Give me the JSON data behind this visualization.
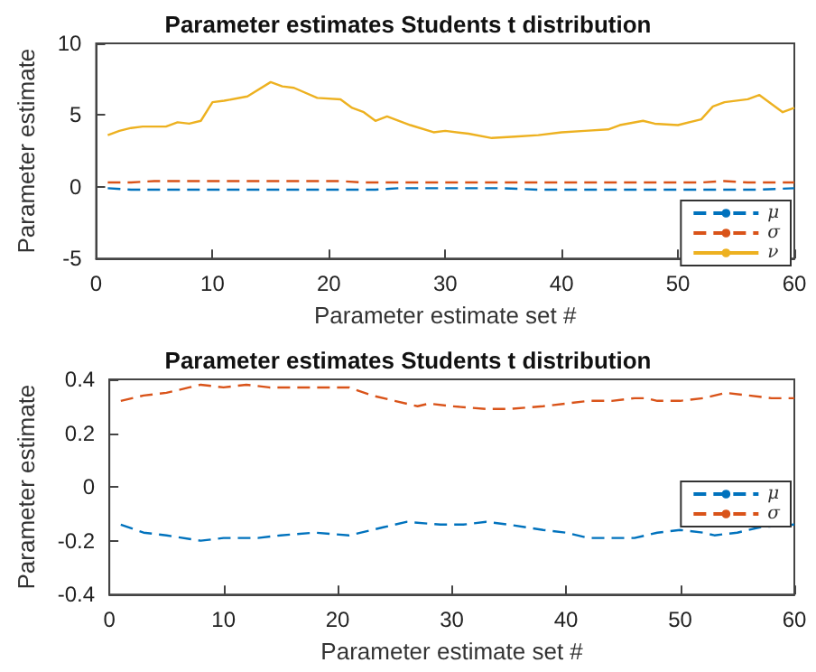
{
  "chart_data": [
    {
      "type": "line",
      "title": "Parameter estimates Students t distribution",
      "xlabel": "Parameter estimate set #",
      "ylabel": "Parameter estimate",
      "xlim": [
        0,
        60
      ],
      "xticks": [
        0,
        10,
        20,
        30,
        40,
        50,
        60
      ],
      "ylim": [
        -5,
        10
      ],
      "yticks": [
        -5,
        0,
        5,
        10
      ],
      "grid": false,
      "legend": "bottom right",
      "marker": "none",
      "series": [
        {
          "name": "μ",
          "color": "#0072bd",
          "line_style": "dashed",
          "x": [
            1,
            3,
            5,
            8,
            10,
            13,
            15,
            18,
            21,
            24,
            26,
            29,
            31,
            33,
            35,
            38,
            40,
            42,
            44,
            46,
            48,
            50,
            52,
            53,
            55,
            57,
            60
          ],
          "values": [
            -0.1,
            -0.2,
            -0.2,
            -0.2,
            -0.2,
            -0.2,
            -0.2,
            -0.2,
            -0.2,
            -0.2,
            -0.1,
            -0.1,
            -0.1,
            -0.1,
            -0.1,
            -0.2,
            -0.2,
            -0.2,
            -0.2,
            -0.2,
            -0.2,
            -0.2,
            -0.2,
            -0.2,
            -0.2,
            -0.2,
            -0.1
          ]
        },
        {
          "name": "σ",
          "color": "#d95319",
          "line_style": "dashed",
          "x": [
            1,
            3,
            5,
            7,
            8,
            10,
            12,
            14,
            17,
            20,
            21,
            23,
            25,
            27,
            28,
            30,
            33,
            35,
            38,
            40,
            42,
            44,
            46,
            47,
            48,
            50,
            52,
            54,
            56,
            58,
            60
          ],
          "values": [
            0.3,
            0.3,
            0.4,
            0.4,
            0.4,
            0.4,
            0.4,
            0.4,
            0.4,
            0.4,
            0.4,
            0.3,
            0.3,
            0.3,
            0.3,
            0.3,
            0.3,
            0.3,
            0.3,
            0.3,
            0.3,
            0.3,
            0.3,
            0.3,
            0.3,
            0.3,
            0.3,
            0.4,
            0.3,
            0.3,
            0.3
          ]
        },
        {
          "name": "ν",
          "color": "#edb120",
          "line_style": "solid",
          "x": [
            1,
            2,
            3,
            4,
            6,
            7,
            8,
            9,
            10,
            11,
            13,
            15,
            16,
            17,
            19,
            21,
            22,
            23,
            24,
            25,
            27,
            29,
            30,
            32,
            34,
            36,
            38,
            40,
            42,
            44,
            45,
            47,
            48,
            50,
            52,
            53,
            54,
            56,
            57,
            58,
            59,
            60
          ],
          "values": [
            3.6,
            3.9,
            4.1,
            4.2,
            4.2,
            4.5,
            4.4,
            4.6,
            5.9,
            6.0,
            6.3,
            7.3,
            7.0,
            6.9,
            6.2,
            6.1,
            5.5,
            5.2,
            4.6,
            4.9,
            4.3,
            3.8,
            3.9,
            3.7,
            3.4,
            3.5,
            3.6,
            3.8,
            3.9,
            4.0,
            4.3,
            4.6,
            4.4,
            4.3,
            4.7,
            5.6,
            5.9,
            6.1,
            6.4,
            5.8,
            5.2,
            5.5
          ]
        }
      ]
    },
    {
      "type": "line",
      "title": "Parameter estimates Students t distribution",
      "xlabel": "Parameter estimate set #",
      "ylabel": "Parameter estimate",
      "xlim": [
        0,
        60
      ],
      "xticks": [
        0,
        10,
        20,
        30,
        40,
        50,
        60
      ],
      "ylim": [
        -0.4,
        0.4
      ],
      "yticks": [
        -0.4,
        -0.2,
        0,
        0.2,
        0.4
      ],
      "grid": false,
      "legend": "right",
      "marker": "none",
      "series": [
        {
          "name": "μ",
          "color": "#0072bd",
          "line_style": "dashed",
          "x": [
            1,
            3,
            5,
            8,
            10,
            13,
            15,
            18,
            21,
            24,
            26,
            29,
            31,
            33,
            35,
            38,
            40,
            42,
            44,
            46,
            48,
            50,
            52,
            53,
            55,
            57,
            60
          ],
          "values": [
            -0.14,
            -0.17,
            -0.18,
            -0.2,
            -0.19,
            -0.19,
            -0.18,
            -0.17,
            -0.18,
            -0.15,
            -0.13,
            -0.14,
            -0.14,
            -0.13,
            -0.14,
            -0.16,
            -0.17,
            -0.19,
            -0.19,
            -0.19,
            -0.17,
            -0.16,
            -0.17,
            -0.18,
            -0.17,
            -0.15,
            -0.14
          ]
        },
        {
          "name": "σ",
          "color": "#d95319",
          "line_style": "dashed",
          "x": [
            1,
            3,
            5,
            7,
            8,
            10,
            12,
            14,
            17,
            20,
            21,
            23,
            25,
            27,
            28,
            30,
            33,
            35,
            38,
            40,
            42,
            44,
            46,
            47,
            48,
            50,
            52,
            54,
            56,
            58,
            60
          ],
          "values": [
            0.32,
            0.34,
            0.35,
            0.37,
            0.38,
            0.37,
            0.38,
            0.37,
            0.37,
            0.37,
            0.37,
            0.34,
            0.32,
            0.3,
            0.31,
            0.3,
            0.29,
            0.29,
            0.3,
            0.31,
            0.32,
            0.32,
            0.33,
            0.33,
            0.32,
            0.32,
            0.33,
            0.35,
            0.34,
            0.33,
            0.33
          ]
        }
      ]
    }
  ]
}
